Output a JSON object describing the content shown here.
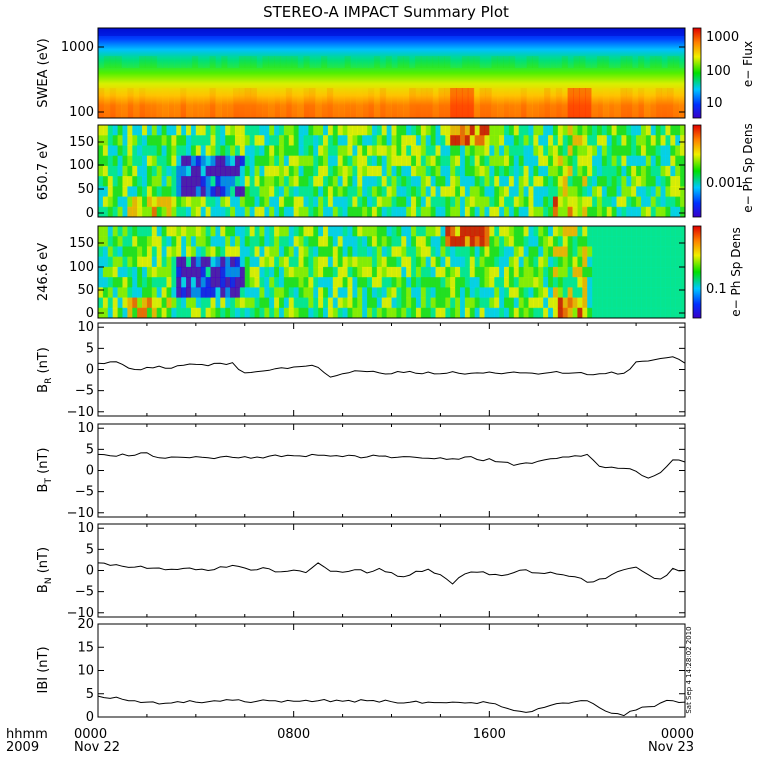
{
  "title": "STEREO-A IMPACT Summary Plot",
  "timestamp": "Sat Sep  4 14:28:02 2010",
  "time_axis": {
    "label_line1": "hhmm",
    "label_line2": "2009",
    "ticks": [
      {
        "hhmm": "0000",
        "date": "Nov 22",
        "hour": 0
      },
      {
        "hhmm": "0800",
        "date": "",
        "hour": 8
      },
      {
        "hhmm": "1600",
        "date": "",
        "hour": 16
      },
      {
        "hhmm": "0000",
        "date": "Nov 23",
        "hour": 24
      }
    ]
  },
  "colorbars": [
    {
      "label": "e− Flux",
      "ticks": [
        "1000",
        "100",
        "10"
      ]
    },
    {
      "label": "e− Ph Sp Dens",
      "ticks": [
        "0.001"
      ]
    },
    {
      "label": "e− Ph Sp Dens",
      "ticks": [
        "0.1"
      ]
    }
  ],
  "chart_data": [
    {
      "type": "heatmap",
      "ylabel": "SWEA (eV)",
      "y_scale": "log",
      "yticks": [
        "1000",
        "100"
      ],
      "description_values": "electron energy flux spectrogram; highest flux near 100 eV, lowest near 2000 eV",
      "band_levels": [
        0.95,
        0.78,
        0.55,
        0.4,
        0.3,
        0.18,
        0.05
      ],
      "enhancements": [
        {
          "hour_start": 14.3,
          "hour_end": 15.3
        },
        {
          "hour_start": 19.2,
          "hour_end": 20.1
        }
      ]
    },
    {
      "type": "heatmap",
      "ylabel": "650.7 eV",
      "ylim": [
        0,
        180
      ],
      "yticks": [
        "150",
        "100",
        "50",
        "0"
      ]
    },
    {
      "type": "heatmap",
      "ylabel": "246.6 eV",
      "ylim": [
        0,
        180
      ],
      "yticks": [
        "150",
        "100",
        "50",
        "0"
      ]
    },
    {
      "type": "line",
      "component": "R",
      "ylim": [
        -11,
        11
      ],
      "yticks": [
        "10",
        "5",
        "0",
        "−5",
        "−10"
      ],
      "x_hours": [
        0,
        0.5,
        1,
        1.5,
        2,
        2.5,
        3,
        3.5,
        4,
        4.5,
        5,
        5.5,
        6,
        6.5,
        7,
        7.5,
        8,
        8.5,
        9,
        9.5,
        10,
        10.5,
        11,
        11.5,
        12,
        12.5,
        13,
        13.5,
        14,
        14.5,
        15,
        15.5,
        16,
        16.5,
        17,
        17.5,
        18,
        18.5,
        19,
        19.5,
        20,
        20.5,
        21,
        21.5,
        22,
        22.5,
        23,
        23.5,
        24
      ],
      "values": [
        1.5,
        1.8,
        1.2,
        0,
        0.5,
        0.8,
        0.3,
        1.0,
        1.2,
        0.9,
        1.5,
        1.6,
        -0.8,
        -0.5,
        -0.2,
        0.4,
        0.6,
        0.8,
        0.5,
        -1.8,
        -1.0,
        -0.3,
        -0.5,
        -0.8,
        -1.0,
        -0.7,
        -0.9,
        -0.6,
        -1.0,
        -0.5,
        -1.1,
        -0.8,
        -0.6,
        -1.0,
        -0.6,
        -0.8,
        -1.1,
        -0.7,
        -0.9,
        -0.8,
        -1.2,
        -1.0,
        -0.6,
        -0.9,
        1.8,
        2.0,
        2.6,
        3.0,
        1.5
      ]
    },
    {
      "type": "line",
      "component": "T",
      "ylim": [
        -11,
        11
      ],
      "yticks": [
        "10",
        "5",
        "0",
        "−5",
        "−10"
      ],
      "x_hours": [
        0,
        0.5,
        1,
        1.5,
        2,
        2.5,
        3,
        3.5,
        4,
        4.5,
        5,
        5.5,
        6,
        6.5,
        7,
        7.5,
        8,
        8.5,
        9,
        9.5,
        10,
        10.5,
        11,
        11.5,
        12,
        12.5,
        13,
        13.5,
        14,
        14.5,
        15,
        15.5,
        16,
        16.5,
        17,
        17.5,
        18,
        18.5,
        19,
        19.5,
        20,
        20.5,
        21,
        21.5,
        22,
        22.5,
        23,
        23.5,
        24
      ],
      "values": [
        3.8,
        3.5,
        3.9,
        3.6,
        4.2,
        3.0,
        3.2,
        3.1,
        3.3,
        3.0,
        3.2,
        3.1,
        3.3,
        3.2,
        3.4,
        3.3,
        3.5,
        3.3,
        3.6,
        3.4,
        3.3,
        3.5,
        3.2,
        3.4,
        3.0,
        3.3,
        3.1,
        2.9,
        3.0,
        2.8,
        3.2,
        2.6,
        2.8,
        2.0,
        1.2,
        1.8,
        2.2,
        2.8,
        3.2,
        3.5,
        3.8,
        1.0,
        0.8,
        0.5,
        -0.2,
        -1.8,
        -0.5,
        2.5,
        2.0
      ]
    },
    {
      "type": "line",
      "component": "N",
      "ylim": [
        -11,
        11
      ],
      "yticks": [
        "10",
        "5",
        "0",
        "−5",
        "−10"
      ],
      "x_hours": [
        0,
        0.5,
        1,
        1.5,
        2,
        2.5,
        3,
        3.5,
        4,
        4.5,
        5,
        5.5,
        6,
        6.5,
        7,
        7.5,
        8,
        8.5,
        9,
        9.5,
        10,
        10.5,
        11,
        11.5,
        12,
        12.5,
        13,
        13.5,
        14,
        14.5,
        15,
        15.5,
        16,
        16.5,
        17,
        17.5,
        18,
        18.5,
        19,
        19.5,
        20,
        20.5,
        21,
        21.5,
        22,
        22.5,
        23,
        23.5,
        24
      ],
      "values": [
        1.8,
        1.2,
        1.0,
        0.8,
        0.5,
        0.6,
        0.3,
        0.5,
        0.2,
        0,
        0.9,
        1.2,
        0.6,
        0.2,
        0.4,
        -0.3,
        0.1,
        -0.5,
        1.8,
        -0.2,
        -0.4,
        0.2,
        -0.6,
        0.5,
        -0.5,
        -1.5,
        -0.2,
        0.3,
        -1.0,
        -3.2,
        -0.8,
        -0.4,
        -1.0,
        -1.2,
        -0.5,
        0.2,
        -0.6,
        -0.4,
        -1.0,
        -1.5,
        -2.8,
        -2.0,
        -1.0,
        0.2,
        0.8,
        -1.0,
        -2.0,
        0.5,
        0.0
      ]
    },
    {
      "type": "line",
      "component": "|B|",
      "ylabel": "IBI (nT)",
      "ylim": [
        0,
        20
      ],
      "yticks": [
        "20",
        "15",
        "10",
        "5",
        "0"
      ],
      "x_hours": [
        0,
        0.5,
        1,
        1.5,
        2,
        2.5,
        3,
        3.5,
        4,
        4.5,
        5,
        5.5,
        6,
        6.5,
        7,
        7.5,
        8,
        8.5,
        9,
        9.5,
        10,
        10.5,
        11,
        11.5,
        12,
        12.5,
        13,
        13.5,
        14,
        14.5,
        15,
        15.5,
        16,
        16.5,
        17,
        17.5,
        18,
        18.5,
        19,
        19.5,
        20,
        20.5,
        21,
        21.5,
        22,
        22.5,
        23,
        23.5,
        24
      ],
      "values": [
        4.5,
        4.0,
        3.8,
        3.5,
        3.2,
        2.8,
        3.0,
        3.1,
        3.2,
        3.3,
        3.4,
        3.6,
        3.3,
        3.4,
        3.5,
        3.2,
        3.4,
        3.6,
        3.5,
        3.3,
        3.4,
        3.2,
        3.5,
        3.2,
        3.3,
        3.0,
        3.4,
        3.2,
        3.1,
        3.2,
        3.0,
        2.9,
        3.0,
        2.2,
        1.4,
        1.0,
        1.8,
        2.5,
        3.0,
        3.3,
        3.5,
        2.0,
        0.8,
        0.3,
        1.5,
        2.2,
        3.0,
        3.5,
        3.2
      ]
    }
  ],
  "panel_labels": [
    {
      "main": "B",
      "sub": "R",
      "unit": " (nT)"
    },
    {
      "main": "B",
      "sub": "T",
      "unit": " (nT)"
    },
    {
      "main": "B",
      "sub": "N",
      "unit": " (nT)"
    }
  ]
}
